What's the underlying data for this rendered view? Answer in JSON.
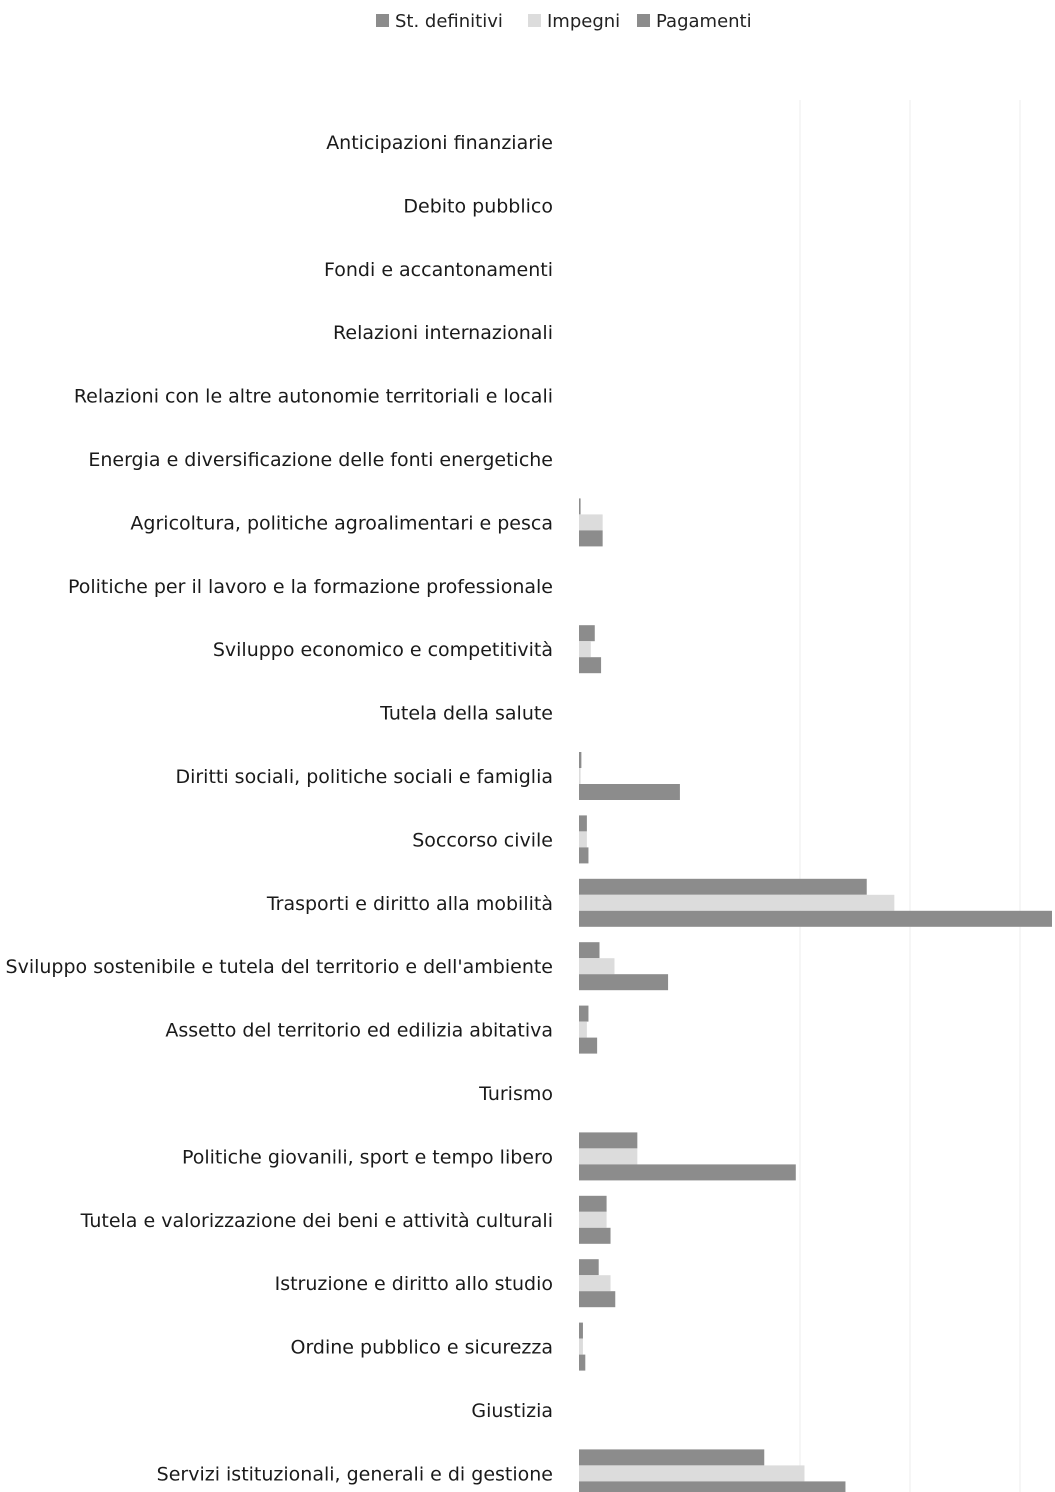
{
  "chart_data": {
    "type": "bar",
    "orientation": "horizontal",
    "legend_position": "top-center",
    "grid": true,
    "series": [
      {
        "name": "St. definitivi",
        "color": "#8c8c8c",
        "values": [
          0,
          0,
          0,
          0,
          0,
          0,
          0.2,
          0,
          2.0,
          0,
          0.3,
          1.0,
          36.5,
          2.6,
          1.2,
          0,
          7.4,
          3.5,
          2.5,
          0.5,
          0,
          23.5
        ]
      },
      {
        "name": "Impegni",
        "color": "#dcdcdc",
        "values": [
          0,
          0,
          0,
          0,
          0,
          0,
          3.0,
          0,
          1.5,
          0,
          0.2,
          1.0,
          40.0,
          4.5,
          1.0,
          0,
          7.4,
          3.5,
          4.0,
          0.5,
          0,
          28.6
        ]
      },
      {
        "name": "Pagamenti",
        "color": "#8c8c8c",
        "values": [
          0,
          0,
          0,
          0,
          0,
          0,
          3.0,
          0,
          2.8,
          0,
          12.8,
          1.2,
          60.0,
          11.3,
          2.3,
          0,
          27.5,
          4.0,
          4.6,
          0.8,
          0,
          33.8
        ]
      }
    ],
    "categories": [
      "Anticipazioni finanziarie",
      "Debito pubblico",
      "Fondi e accantonamenti",
      "Relazioni internazionali",
      "Relazioni con le altre autonomie territoriali e locali",
      "Energia e diversificazione delle fonti energetiche",
      "Agricoltura, politiche agroalimentari e pesca",
      "Politiche per il lavoro e la formazione professionale",
      "Sviluppo economico e competitività",
      "Tutela della salute",
      "Diritti sociali, politiche sociali e famiglia",
      "Soccorso civile",
      "Trasporti e diritto alla mobilità",
      "Sviluppo sostenibile e tutela del territorio e dell'ambiente",
      "Assetto del territorio ed edilizia abitativa",
      "Turismo",
      "Politiche giovanili, sport e tempo libero",
      "Tutela e valorizzazione dei beni e attività culturali",
      "Istruzione e diritto allo studio",
      "Ordine pubblico e sicurezza",
      "Giustizia",
      "Servizi istituzionali, generali e di gestione"
    ],
    "xlim": [
      0,
      60
    ]
  }
}
